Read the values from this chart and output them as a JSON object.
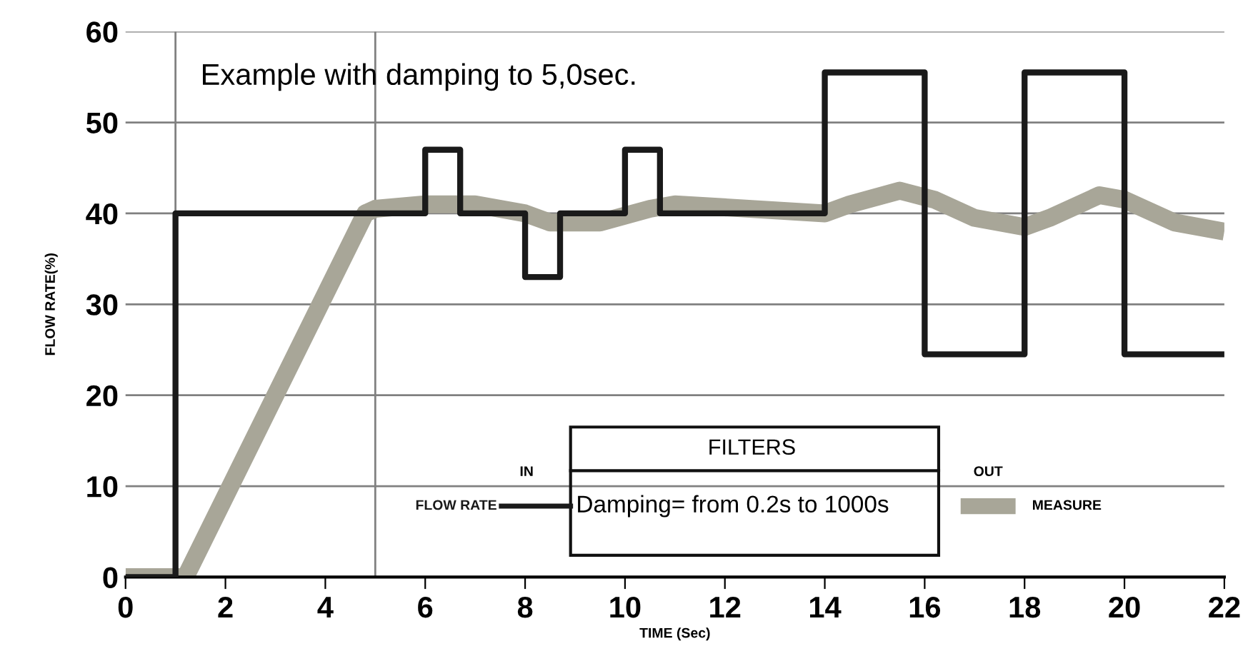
{
  "chart_data": {
    "type": "step",
    "xlabel": "TIME (Sec)",
    "ylabel": "FLOW RATE(%)",
    "xlim": [
      0,
      22
    ],
    "xticks": [
      0,
      2,
      4,
      6,
      8,
      10,
      12,
      14,
      16,
      18,
      20,
      22
    ],
    "ylim": [
      0,
      60
    ],
    "yticks": [
      0,
      10,
      20,
      30,
      40,
      50,
      60
    ],
    "grid": "y",
    "legend": "bottom",
    "marker": "none",
    "line_style": "solid",
    "annotations": [
      "Example with damping to 5,0sec.",
      "IN",
      "FILTERS",
      "Damping= from 0.2s to 1000s",
      "OUT"
    ],
    "ref_lines": [
      {
        "axis": "x",
        "value": 1,
        "label": null,
        "color": "#808080"
      },
      {
        "axis": "x",
        "value": 5,
        "label": null,
        "color": "#808080"
      }
    ],
    "series": [
      {
        "name": "FLOW RATE",
        "color": "#1a1a1a",
        "x": [
          0,
          1,
          6,
          6.7,
          8,
          8.7,
          10,
          10.7,
          14,
          16,
          18,
          20,
          22
        ],
        "values": [
          0,
          40,
          47,
          40,
          33,
          40,
          47,
          40,
          55.5,
          24.5,
          55.5,
          24.5,
          24.5
        ]
      },
      {
        "name": "MEASURE",
        "type": "line",
        "color": "#a8a698",
        "x": [
          0,
          1.2,
          4.8,
          5,
          6,
          7,
          8,
          8.5,
          9.5,
          10.5,
          11,
          14,
          14.5,
          15.5,
          16.2,
          17,
          18,
          18.5,
          19.5,
          20,
          21,
          22
        ],
        "values": [
          0,
          0,
          40,
          40.5,
          41,
          41,
          40,
          39,
          39,
          40.5,
          41,
          40,
          41,
          42.5,
          41.5,
          39.5,
          38.5,
          39.5,
          42,
          41.5,
          39,
          38
        ]
      }
    ]
  }
}
